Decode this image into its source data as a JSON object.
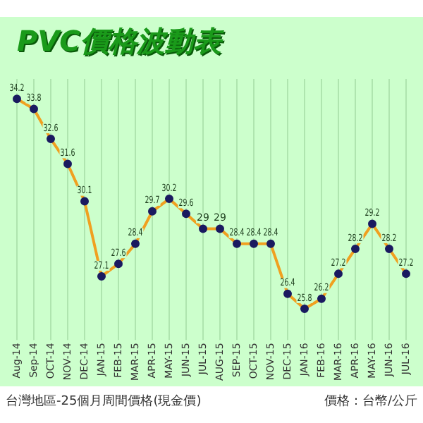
{
  "chart_data": {
    "type": "line",
    "title": "PVC價格波動表",
    "categories": [
      "Aug-14",
      "Sep-14",
      "OCT-14",
      "NOV-14",
      "DEC-14",
      "JAN-15",
      "FEB-15",
      "MAR-15",
      "APR-15",
      "MAY-15",
      "JUN-15",
      "JUL-15",
      "AUG-15",
      "SEP-15",
      "OCT-15",
      "NOV-15",
      "DEC-15",
      "JAN-16",
      "FEB-16",
      "MAR-16",
      "APR-16",
      "MAY-16",
      "JUN-16",
      "JUL-16"
    ],
    "series": [
      {
        "color": "#f0a020",
        "values": [
          34.2,
          33.8,
          32.6,
          31.6,
          30.1,
          27.1,
          27.6,
          28.4,
          29.7,
          30.2,
          29.6,
          29,
          29,
          28.4,
          28.4,
          28.4,
          26.4,
          25.8,
          26.2,
          27.2,
          28.2,
          29.2,
          28.2,
          27.2
        ]
      }
    ],
    "data_labels": true,
    "marker": "circle",
    "line_style": "solid",
    "grid": "x",
    "legend": false,
    "tick_labels": "x",
    "annotations": [
      "台灣地區-25個月周間價格(現金價)",
      "價格：台幣/公斤"
    ]
  }
}
